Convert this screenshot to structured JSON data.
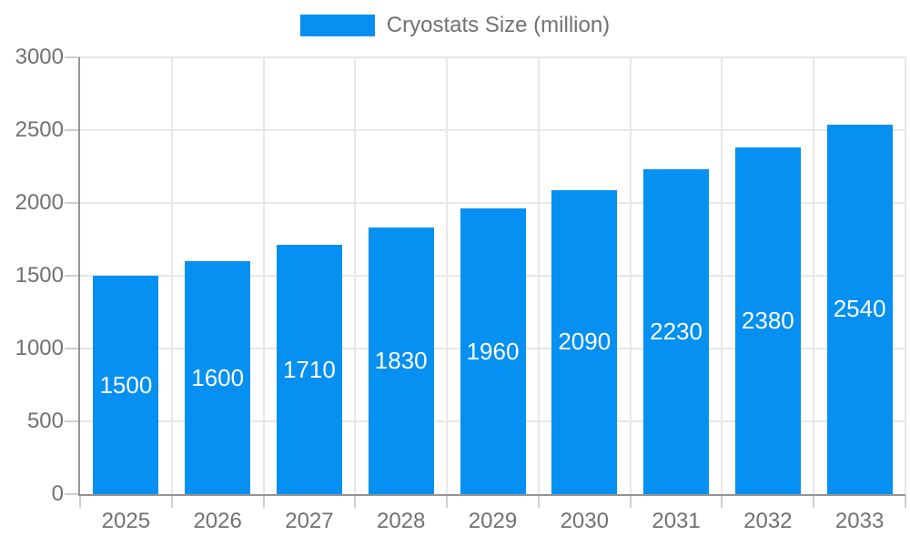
{
  "chart_data": {
    "type": "bar",
    "title": "",
    "series_label": "Cryostats Size (million)",
    "categories": [
      "2025",
      "2026",
      "2027",
      "2028",
      "2029",
      "2030",
      "2031",
      "2032",
      "2033"
    ],
    "values": [
      1500,
      1600,
      1710,
      1830,
      1960,
      2090,
      2230,
      2380,
      2540
    ],
    "xlabel": "",
    "ylabel": "",
    "ylim": [
      0,
      3000
    ],
    "yticks": [
      0,
      500,
      1000,
      1500,
      2000,
      2500,
      3000
    ],
    "grid": true,
    "legend_position": "top",
    "bar_value_labels": "centered-inside-white",
    "colors": {
      "bar": "#0590f2",
      "grid": "#e7e7e7",
      "tick": "#cfcfcf",
      "axis": "#949494",
      "text": "#717171",
      "bar_label": "#ffffff",
      "background": "#ffffff"
    }
  }
}
